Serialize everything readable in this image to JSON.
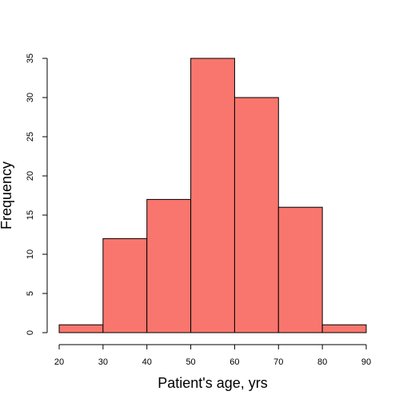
{
  "chart_data": {
    "type": "bar",
    "xlabel": "Patient's age, yrs",
    "ylabel": "Frequency",
    "bins": [
      {
        "from": 20,
        "to": 30,
        "count": 1
      },
      {
        "from": 30,
        "to": 40,
        "count": 12
      },
      {
        "from": 40,
        "to": 50,
        "count": 17
      },
      {
        "from": 50,
        "to": 60,
        "count": 35
      },
      {
        "from": 60,
        "to": 70,
        "count": 30
      },
      {
        "from": 70,
        "to": 80,
        "count": 16
      },
      {
        "from": 80,
        "to": 90,
        "count": 1
      }
    ],
    "xlim": [
      20,
      90
    ],
    "ylim": [
      0,
      35
    ],
    "x_ticks": [
      "20",
      "30",
      "40",
      "50",
      "60",
      "70",
      "80",
      "90"
    ],
    "y_ticks": [
      "0",
      "5",
      "10",
      "15",
      "20",
      "25",
      "30",
      "35"
    ],
    "bar_color": "#f8766d",
    "grid": false
  }
}
